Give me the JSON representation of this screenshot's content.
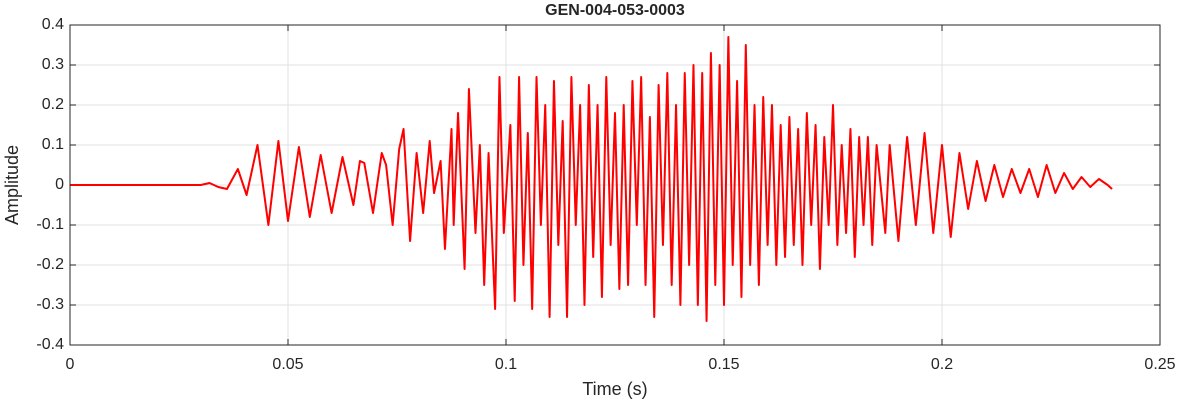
{
  "chart_data": {
    "type": "line",
    "title": "GEN-004-053-0003",
    "xlabel": "Time (s)",
    "ylabel": "Amplitude",
    "color": "#ff0000",
    "grid": true,
    "xlim": [
      0,
      0.25
    ],
    "xticks": [
      0,
      0.05,
      0.1,
      0.15,
      0.2,
      0.25
    ],
    "ylim": [
      -0.4,
      0.4
    ],
    "yticks": [
      -0.4,
      -0.3,
      -0.2,
      -0.1,
      0,
      0.1,
      0.2,
      0.3,
      0.4
    ],
    "x": [
      0,
      0.01,
      0.02,
      0.03,
      0.032,
      0.034,
      0.036,
      0.0385,
      0.0405,
      0.043,
      0.0455,
      0.0478,
      0.05,
      0.0525,
      0.055,
      0.0575,
      0.06,
      0.0625,
      0.065,
      0.0665,
      0.0675,
      0.0695,
      0.0715,
      0.0725,
      0.074,
      0.0755,
      0.0765,
      0.078,
      0.0795,
      0.081,
      0.0825,
      0.0835,
      0.085,
      0.086,
      0.0875,
      0.088,
      0.089,
      0.0905,
      0.0915,
      0.093,
      0.094,
      0.095,
      0.096,
      0.0975,
      0.0985,
      0.0995,
      0.101,
      0.102,
      0.103,
      0.104,
      0.105,
      0.106,
      0.107,
      0.108,
      0.109,
      0.11,
      0.111,
      0.112,
      0.113,
      0.114,
      0.115,
      0.116,
      0.117,
      0.118,
      0.119,
      0.12,
      0.121,
      0.122,
      0.123,
      0.124,
      0.125,
      0.126,
      0.127,
      0.128,
      0.129,
      0.13,
      0.131,
      0.132,
      0.133,
      0.134,
      0.135,
      0.136,
      0.137,
      0.138,
      0.139,
      0.14,
      0.141,
      0.142,
      0.143,
      0.144,
      0.145,
      0.146,
      0.147,
      0.148,
      0.149,
      0.15,
      0.151,
      0.152,
      0.153,
      0.154,
      0.155,
      0.156,
      0.157,
      0.158,
      0.159,
      0.16,
      0.161,
      0.162,
      0.163,
      0.164,
      0.165,
      0.166,
      0.167,
      0.168,
      0.169,
      0.17,
      0.171,
      0.172,
      0.173,
      0.174,
      0.175,
      0.176,
      0.177,
      0.178,
      0.179,
      0.18,
      0.181,
      0.182,
      0.183,
      0.184,
      0.185,
      0.187,
      0.188,
      0.19,
      0.192,
      0.194,
      0.196,
      0.198,
      0.2,
      0.202,
      0.204,
      0.206,
      0.208,
      0.21,
      0.212,
      0.214,
      0.216,
      0.218,
      0.22,
      0.222,
      0.224,
      0.226,
      0.228,
      0.23,
      0.232,
      0.234,
      0.236,
      0.238,
      0.239
    ],
    "values": [
      0,
      0,
      0,
      0,
      0.005,
      -0.005,
      -0.01,
      0.04,
      -0.025,
      0.1,
      -0.1,
      0.11,
      -0.09,
      0.095,
      -0.08,
      0.075,
      -0.07,
      0.07,
      -0.05,
      0.06,
      0.055,
      -0.07,
      0.08,
      0.05,
      -0.1,
      0.09,
      0.14,
      -0.14,
      0.08,
      -0.07,
      0.11,
      -0.02,
      0.06,
      -0.16,
      0.14,
      -0.1,
      0.18,
      -0.21,
      0.24,
      -0.12,
      0.1,
      -0.25,
      0.08,
      -0.31,
      0.27,
      -0.12,
      0.15,
      -0.29,
      0.27,
      -0.2,
      0.13,
      -0.31,
      0.27,
      -0.1,
      0.2,
      -0.33,
      0.26,
      -0.15,
      0.16,
      -0.33,
      0.27,
      -0.1,
      0.2,
      -0.3,
      0.25,
      -0.18,
      0.2,
      -0.28,
      0.27,
      -0.15,
      0.18,
      -0.26,
      0.2,
      -0.25,
      0.26,
      -0.1,
      0.27,
      -0.25,
      0.17,
      -0.33,
      0.25,
      -0.15,
      0.28,
      -0.25,
      0.2,
      -0.3,
      0.28,
      -0.2,
      0.3,
      -0.3,
      0.28,
      -0.34,
      0.33,
      -0.25,
      0.3,
      -0.3,
      0.37,
      -0.2,
      0.26,
      -0.28,
      0.35,
      -0.2,
      0.2,
      -0.25,
      0.22,
      -0.15,
      0.2,
      -0.2,
      0.15,
      -0.18,
      0.17,
      -0.15,
      0.14,
      -0.2,
      0.18,
      -0.1,
      0.15,
      -0.21,
      0.12,
      -0.1,
      0.2,
      -0.15,
      0.1,
      -0.12,
      0.14,
      -0.18,
      0.12,
      -0.1,
      0.12,
      -0.15,
      0.1,
      -0.12,
      0.1,
      -0.14,
      0.12,
      -0.1,
      0.13,
      -0.12,
      0.1,
      -0.13,
      0.08,
      -0.06,
      0.06,
      -0.04,
      0.05,
      -0.03,
      0.04,
      -0.02,
      0.04,
      -0.03,
      0.05,
      -0.02,
      0.03,
      -0.01,
      0.02,
      -0.005,
      0.015,
      0,
      -0.01
    ]
  }
}
